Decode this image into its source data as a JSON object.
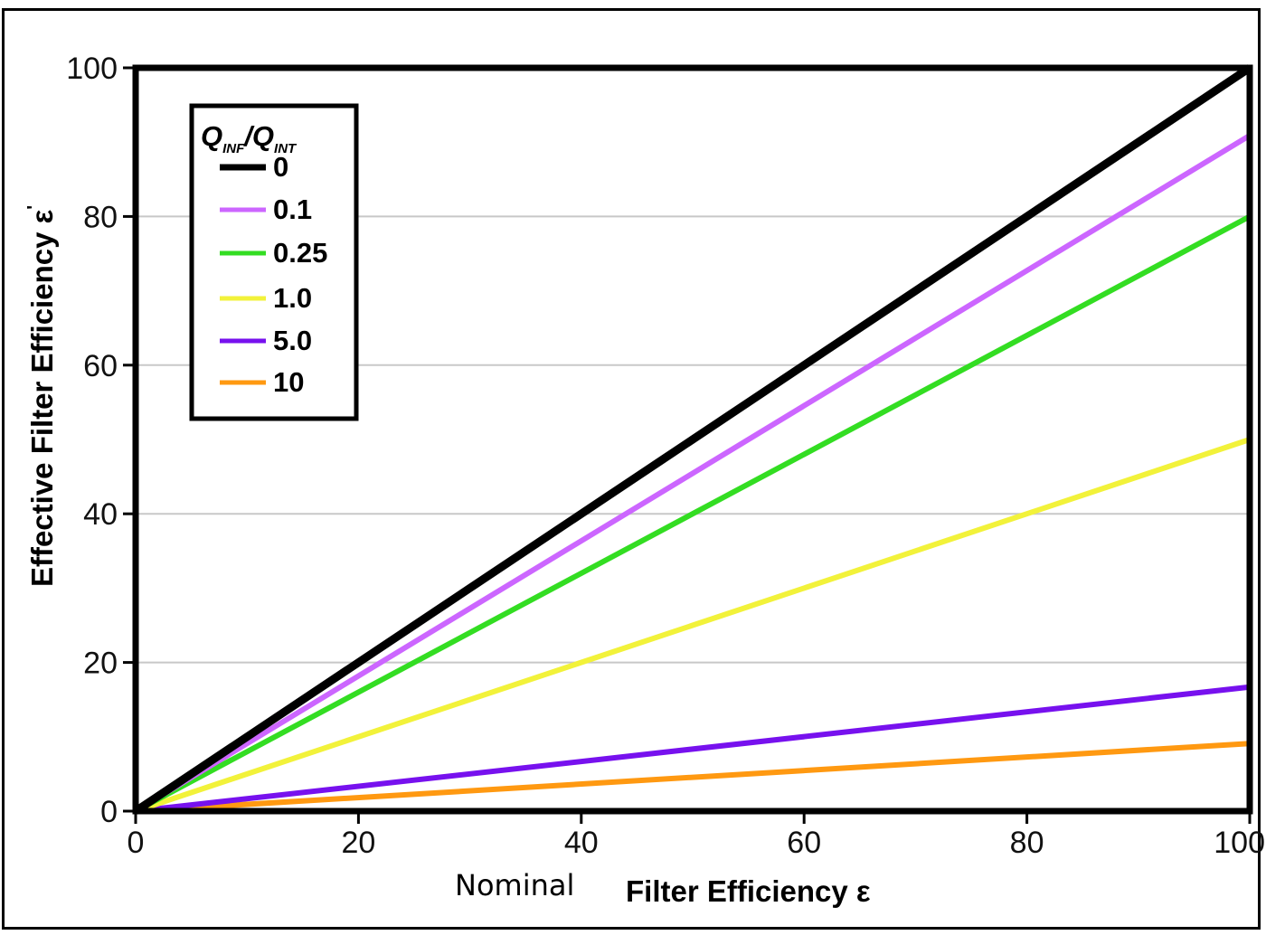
{
  "chart_data": {
    "type": "line",
    "xlabel_prefix": "Nominal",
    "xlabel": "Filter Efficiency ε",
    "ylabel": "Effective Filter Efficiency ε",
    "ylabel_superscript": "'",
    "xlim": [
      0,
      100
    ],
    "ylim": [
      0,
      100
    ],
    "xticks": [
      0,
      20,
      40,
      60,
      80,
      100
    ],
    "yticks": [
      0,
      20,
      40,
      60,
      80,
      100
    ],
    "grid": "horizontal",
    "legend": {
      "placement": "top-left",
      "title_main_1": "Q",
      "title_sub_1": "INF",
      "title_sep": "/",
      "title_main_2": "Q",
      "title_sub_2": "INT"
    },
    "series": [
      {
        "name": "0",
        "color": "#000000",
        "x": [
          0,
          100
        ],
        "values": [
          0,
          100
        ]
      },
      {
        "name": "0.1",
        "color": "#cc66ff",
        "x": [
          0,
          100
        ],
        "values": [
          0,
          90.9
        ]
      },
      {
        "name": "0.25",
        "color": "#33dd22",
        "x": [
          0,
          100
        ],
        "values": [
          0,
          80
        ]
      },
      {
        "name": "1.0",
        "color": "#f2f23a",
        "x": [
          0,
          100
        ],
        "values": [
          0,
          50
        ]
      },
      {
        "name": "5.0",
        "color": "#7711ee",
        "x": [
          0,
          100
        ],
        "values": [
          0,
          16.7
        ]
      },
      {
        "name": "10",
        "color": "#ff9911",
        "x": [
          0,
          100
        ],
        "values": [
          0,
          9.1
        ]
      }
    ]
  }
}
